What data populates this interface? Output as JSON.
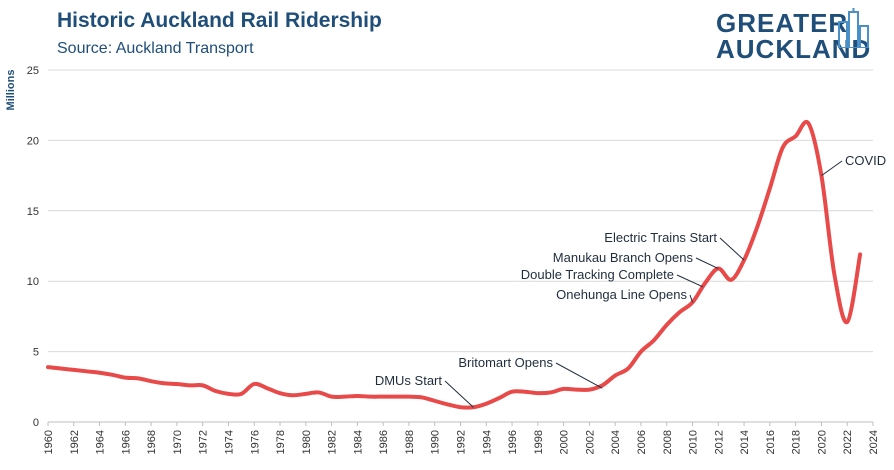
{
  "header": {
    "title": "Historic Auckland Rail Ridership",
    "subtitle": "Source: Auckland Transport"
  },
  "logo": {
    "line1": "GREATER",
    "line2": "AUCKLAND",
    "color": "#1f4e79"
  },
  "colors": {
    "line": "#e84a4a",
    "grid": "#d9d9d9",
    "text": "#1f4e79"
  },
  "chart_data": {
    "type": "line",
    "title": "Historic Auckland Rail Ridership",
    "subtitle": "Source: Auckland Transport",
    "ylabel": "Millions",
    "xlabel": "",
    "xlim": [
      1960,
      2024
    ],
    "ylim": [
      0,
      25
    ],
    "grid": true,
    "x_ticks": [
      1960,
      1962,
      1964,
      1966,
      1968,
      1970,
      1972,
      1974,
      1976,
      1978,
      1980,
      1982,
      1984,
      1986,
      1988,
      1990,
      1992,
      1994,
      1996,
      1998,
      2000,
      2002,
      2004,
      2006,
      2008,
      2010,
      2012,
      2014,
      2016,
      2018,
      2020,
      2022,
      2024
    ],
    "y_ticks": [
      0,
      5,
      10,
      15,
      20,
      25
    ],
    "series": [
      {
        "name": "",
        "x": [
          1960,
          1961,
          1962,
          1963,
          1964,
          1965,
          1966,
          1967,
          1968,
          1969,
          1970,
          1971,
          1972,
          1973,
          1974,
          1975,
          1976,
          1977,
          1978,
          1979,
          1980,
          1981,
          1982,
          1983,
          1984,
          1985,
          1986,
          1987,
          1988,
          1989,
          1990,
          1991,
          1992,
          1993,
          1994,
          1995,
          1996,
          1997,
          1998,
          1999,
          2000,
          2001,
          2002,
          2003,
          2004,
          2005,
          2006,
          2007,
          2008,
          2009,
          2010,
          2011,
          2012,
          2013,
          2014,
          2015,
          2016,
          2017,
          2018,
          2019,
          2020,
          2021,
          2022,
          2023
        ],
        "values": [
          3.9,
          3.8,
          3.7,
          3.6,
          3.5,
          3.35,
          3.15,
          3.1,
          2.9,
          2.75,
          2.7,
          2.6,
          2.6,
          2.2,
          2.0,
          2.0,
          2.7,
          2.4,
          2.05,
          1.9,
          2.0,
          2.1,
          1.8,
          1.8,
          1.85,
          1.8,
          1.8,
          1.8,
          1.8,
          1.75,
          1.5,
          1.25,
          1.05,
          1.05,
          1.3,
          1.7,
          2.15,
          2.15,
          2.05,
          2.1,
          2.35,
          2.3,
          2.3,
          2.6,
          3.3,
          3.8,
          5.0,
          5.8,
          6.9,
          7.8,
          8.5,
          9.9,
          10.9,
          10.1,
          11.5,
          13.8,
          16.6,
          19.5,
          20.3,
          21.2,
          17.5,
          10.5,
          7.1,
          11.9
        ]
      }
    ],
    "annotations": [
      {
        "label": "DMUs Start",
        "x": 1993,
        "y": 1.05
      },
      {
        "label": "Britomart Opens",
        "x": 2003,
        "y": 2.4
      },
      {
        "label": "Onehunga Line Opens",
        "x": 2010,
        "y": 8.5
      },
      {
        "label": "Double Tracking Complete",
        "x": 2010.8,
        "y": 9.6
      },
      {
        "label": "Manukau Branch Opens",
        "x": 2012,
        "y": 10.9
      },
      {
        "label": "Electric Trains Start",
        "x": 2014,
        "y": 11.5
      },
      {
        "label": "COVID",
        "x": 2020,
        "y": 17.5
      }
    ]
  }
}
